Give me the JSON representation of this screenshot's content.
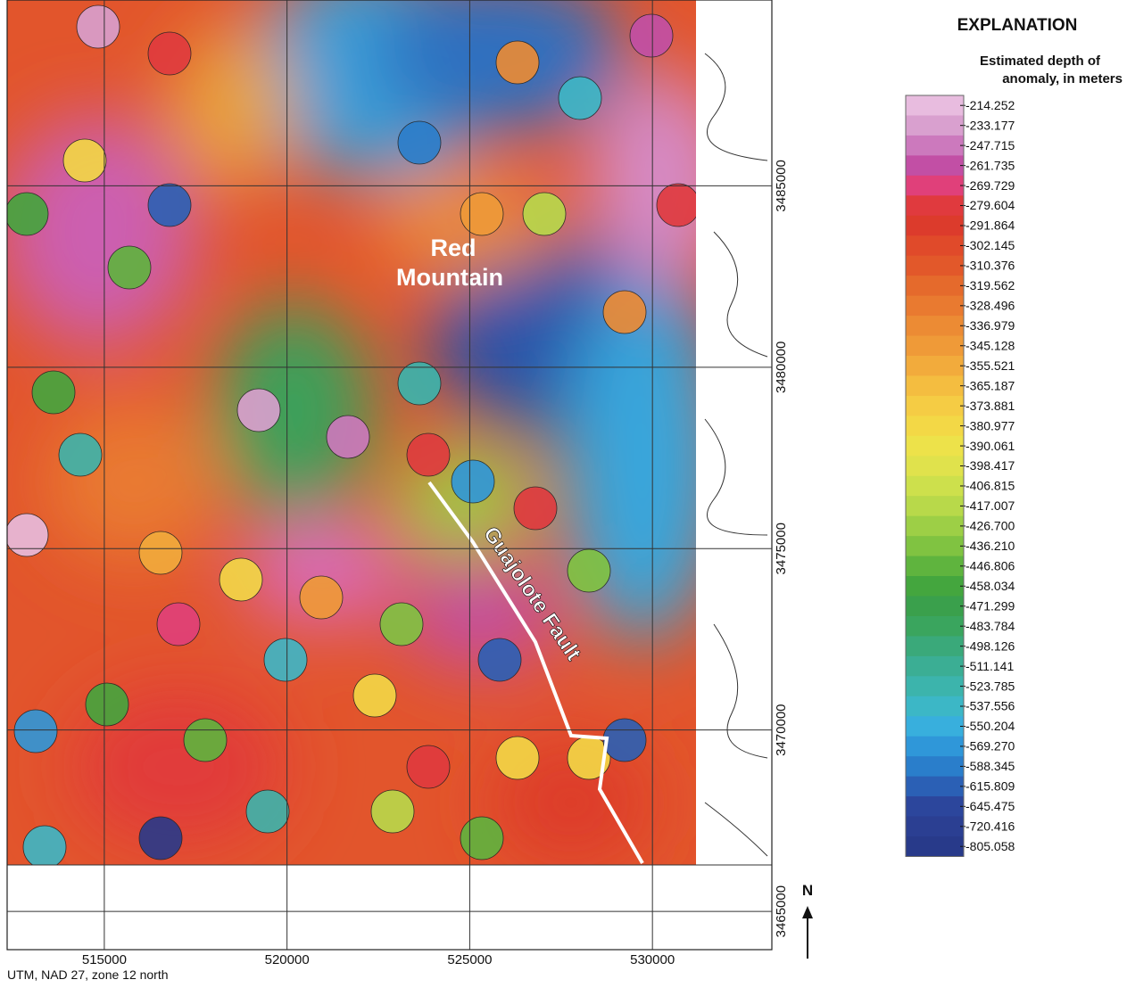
{
  "map": {
    "xlim": [
      512341,
      533268
    ],
    "ylim": [
      3463946,
      3490122
    ],
    "xticks": [
      515000,
      520000,
      525000,
      530000
    ],
    "yticks": [
      3465000,
      3470000,
      3475000,
      3480000,
      3485000
    ],
    "place_label": [
      "Red",
      "Mountain"
    ],
    "fault_label": "Guajolote Fault",
    "north": "N",
    "projection": "UTM, NAD 27, zone 12 north"
  },
  "legend": {
    "title": "EXPLANATION",
    "subtitle": [
      "Estimated depth of",
      "anomaly, in meters"
    ],
    "entries": [
      {
        "label": "-214.252",
        "color": "#e8bcdf"
      },
      {
        "label": "-233.177",
        "color": "#d9a0cf"
      },
      {
        "label": "-247.715",
        "color": "#cc79bd"
      },
      {
        "label": "-261.735",
        "color": "#c24fa5"
      },
      {
        "label": "-269.729",
        "color": "#e0407a"
      },
      {
        "label": "-279.604",
        "color": "#e03a3e"
      },
      {
        "label": "-291.864",
        "color": "#dc3b2c"
      },
      {
        "label": "-302.145",
        "color": "#e04a2a"
      },
      {
        "label": "-310.376",
        "color": "#e2582a"
      },
      {
        "label": "-319.562",
        "color": "#e56a2c"
      },
      {
        "label": "-328.496",
        "color": "#e97a30"
      },
      {
        "label": "-336.979",
        "color": "#ec8b34"
      },
      {
        "label": "-345.128",
        "color": "#ef9a38"
      },
      {
        "label": "-355.521",
        "color": "#f2ab3c"
      },
      {
        "label": "-365.187",
        "color": "#f4bd40"
      },
      {
        "label": "-373.881",
        "color": "#f5cc44"
      },
      {
        "label": "-380.977",
        "color": "#f3d846"
      },
      {
        "label": "-390.061",
        "color": "#ede24a"
      },
      {
        "label": "-398.417",
        "color": "#e0e24c"
      },
      {
        "label": "-406.815",
        "color": "#cde04c"
      },
      {
        "label": "-417.007",
        "color": "#b8d94a"
      },
      {
        "label": "-426.700",
        "color": "#9dcf46"
      },
      {
        "label": "-436.210",
        "color": "#80c341"
      },
      {
        "label": "-446.806",
        "color": "#5fb43e"
      },
      {
        "label": "-458.034",
        "color": "#44a63e"
      },
      {
        "label": "-471.299",
        "color": "#3aa04c"
      },
      {
        "label": "-483.784",
        "color": "#3aa55e"
      },
      {
        "label": "-498.126",
        "color": "#3aa97a"
      },
      {
        "label": "-511.141",
        "color": "#3bae94"
      },
      {
        "label": "-523.785",
        "color": "#3cb4ac"
      },
      {
        "label": "-537.556",
        "color": "#3cb7c6"
      },
      {
        "label": "-550.204",
        "color": "#38afdd"
      },
      {
        "label": "-569.270",
        "color": "#2f97d9"
      },
      {
        "label": "-588.345",
        "color": "#2a7ecb"
      },
      {
        "label": "-615.809",
        "color": "#2b60b5"
      },
      {
        "label": "-645.475",
        "color": "#2c469c"
      },
      {
        "label": "-720.416",
        "color": "#2b3f92"
      },
      {
        "label": "-805.058",
        "color": "#283a8a"
      }
    ]
  }
}
